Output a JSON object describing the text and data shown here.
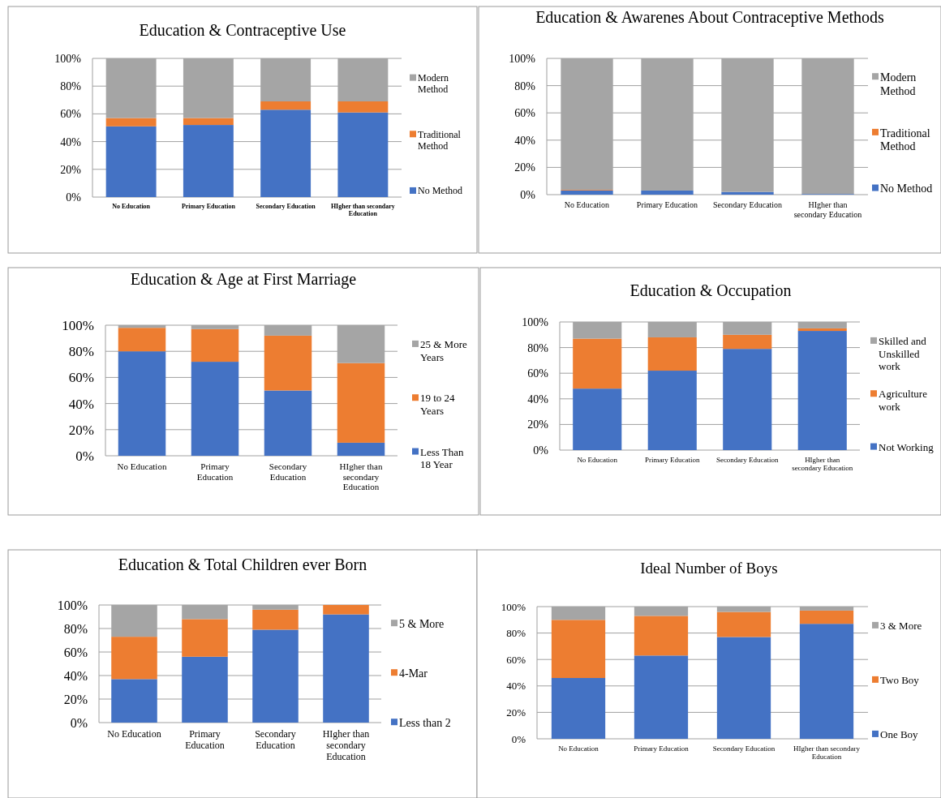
{
  "chart_data": [
    {
      "type": "bar",
      "stacked": true,
      "title": "Education & Contraceptive Use",
      "categories": [
        "No Education",
        "Primary Education",
        "Secondary Education",
        "HIgher than secondary Education"
      ],
      "series": [
        {
          "name": "No Method",
          "color": "#4472c4",
          "values": [
            51,
            52,
            63,
            61
          ]
        },
        {
          "name": "Traditional Method",
          "color": "#ed7d31",
          "values": [
            6,
            5,
            6,
            8
          ]
        },
        {
          "name": "Modern Method",
          "color": "#a5a5a5",
          "values": [
            43,
            43,
            31,
            31
          ]
        }
      ],
      "ylim": [
        0,
        100
      ],
      "yticks": [
        {
          "value": 0,
          "label": "0%"
        },
        {
          "value": 20,
          "label": "20%"
        },
        {
          "value": 40,
          "label": "40%"
        },
        {
          "value": 60,
          "label": "60%"
        },
        {
          "value": 80,
          "label": "80%"
        },
        {
          "value": 100,
          "label": "100%"
        }
      ],
      "grid": "y",
      "legend": "right"
    },
    {
      "type": "bar",
      "stacked": true,
      "title": "Education & Awarenes About Contraceptive Methods",
      "categories": [
        "No Education",
        "Primary Education",
        "Secondary Education",
        "HIgher than secondary Education"
      ],
      "series": [
        {
          "name": "No Method",
          "color": "#4472c4",
          "values": [
            3,
            3,
            2,
            0.5
          ]
        },
        {
          "name": "Traditional Method",
          "color": "#ed7d31",
          "values": [
            0.5,
            0,
            0,
            0
          ]
        },
        {
          "name": "Modern Method",
          "color": "#a5a5a5",
          "values": [
            96.5,
            97,
            98,
            99.5
          ]
        }
      ],
      "ylim": [
        0,
        100
      ],
      "yticks": [
        {
          "value": 0,
          "label": "0%"
        },
        {
          "value": 20,
          "label": "20%"
        },
        {
          "value": 40,
          "label": "40%"
        },
        {
          "value": 60,
          "label": "60%"
        },
        {
          "value": 80,
          "label": "80%"
        },
        {
          "value": 100,
          "label": "100%"
        }
      ],
      "grid": "y",
      "legend": "right"
    },
    {
      "type": "bar",
      "stacked": true,
      "title": "Education & Age at First Marriage",
      "categories": [
        "No Education",
        "Primary Education",
        "Secondary Education",
        "HIgher than secondary Education"
      ],
      "series": [
        {
          "name": "Less Than 18 Year",
          "color": "#4472c4",
          "values": [
            80,
            72,
            50,
            10
          ]
        },
        {
          "name": "19 to 24 Years",
          "color": "#ed7d31",
          "values": [
            18,
            25,
            42,
            61
          ]
        },
        {
          "name": "25 & More Years",
          "color": "#a5a5a5",
          "values": [
            2,
            3,
            8,
            29
          ]
        }
      ],
      "ylim": [
        0,
        100
      ],
      "yticks": [
        {
          "value": 0,
          "label": "0%"
        },
        {
          "value": 20,
          "label": "20%"
        },
        {
          "value": 40,
          "label": "40%"
        },
        {
          "value": 60,
          "label": "60%"
        },
        {
          "value": 80,
          "label": "80%"
        },
        {
          "value": 100,
          "label": "100%"
        }
      ],
      "grid": "y",
      "legend": "right"
    },
    {
      "type": "bar",
      "stacked": true,
      "title": "Education & Occupation",
      "categories": [
        "No Education",
        "Primary Education",
        "Secondary Education",
        "HIgher than secondary Education"
      ],
      "series": [
        {
          "name": "Not Working",
          "color": "#4472c4",
          "values": [
            48,
            62,
            79,
            93
          ]
        },
        {
          "name": "Agriculture work",
          "color": "#ed7d31",
          "values": [
            39,
            26,
            11,
            2
          ]
        },
        {
          "name": "Skilled and Unskilled work",
          "color": "#a5a5a5",
          "values": [
            13,
            12,
            10,
            5
          ]
        }
      ],
      "ylim": [
        0,
        100
      ],
      "yticks": [
        {
          "value": 0,
          "label": "0%"
        },
        {
          "value": 20,
          "label": "20%"
        },
        {
          "value": 40,
          "label": "40%"
        },
        {
          "value": 60,
          "label": "60%"
        },
        {
          "value": 80,
          "label": "80%"
        },
        {
          "value": 100,
          "label": "100%"
        }
      ],
      "grid": "y",
      "legend": "right"
    },
    {
      "type": "bar",
      "stacked": true,
      "title": "Education & Total Children ever Born",
      "categories": [
        "No Education",
        "Primary Education",
        "Secondary Education",
        "HIgher than secondary Education"
      ],
      "series": [
        {
          "name": "Less than 2",
          "color": "#4472c4",
          "values": [
            37,
            56,
            79,
            92
          ]
        },
        {
          "name": "4-Mar",
          "color": "#ed7d31",
          "values": [
            36,
            32,
            17,
            8
          ]
        },
        {
          "name": "5 & More",
          "color": "#a5a5a5",
          "values": [
            27,
            12,
            4,
            null
          ]
        }
      ],
      "ylim": [
        0,
        100
      ],
      "yticks": [
        {
          "value": 0,
          "label": "0%"
        },
        {
          "value": 20,
          "label": "20%"
        },
        {
          "value": 40,
          "label": "40%"
        },
        {
          "value": 60,
          "label": "60%"
        },
        {
          "value": 80,
          "label": "80%"
        },
        {
          "value": 100,
          "label": "100%"
        }
      ],
      "grid": "y",
      "legend": "right"
    },
    {
      "type": "bar",
      "stacked": true,
      "title": "Ideal Number of Boys",
      "categories": [
        "No Education",
        "Primary Education",
        "Secondary Education",
        "HIgher than secondary Education"
      ],
      "series": [
        {
          "name": "One Boy",
          "color": "#4472c4",
          "values": [
            46,
            63,
            77,
            87
          ]
        },
        {
          "name": "Two Boy",
          "color": "#ed7d31",
          "values": [
            44,
            30,
            19,
            10
          ]
        },
        {
          "name": "3 & More",
          "color": "#a5a5a5",
          "values": [
            10,
            7,
            4,
            3
          ]
        }
      ],
      "ylim": [
        0,
        100
      ],
      "yticks": [
        {
          "value": 0,
          "label": "0%"
        },
        {
          "value": 20,
          "label": "20%"
        },
        {
          "value": 40,
          "label": "40%"
        },
        {
          "value": 60,
          "label": "60%"
        },
        {
          "value": 80,
          "label": "80%"
        },
        {
          "value": 100,
          "label": "100%"
        }
      ],
      "grid": "y",
      "legend": "right"
    }
  ]
}
